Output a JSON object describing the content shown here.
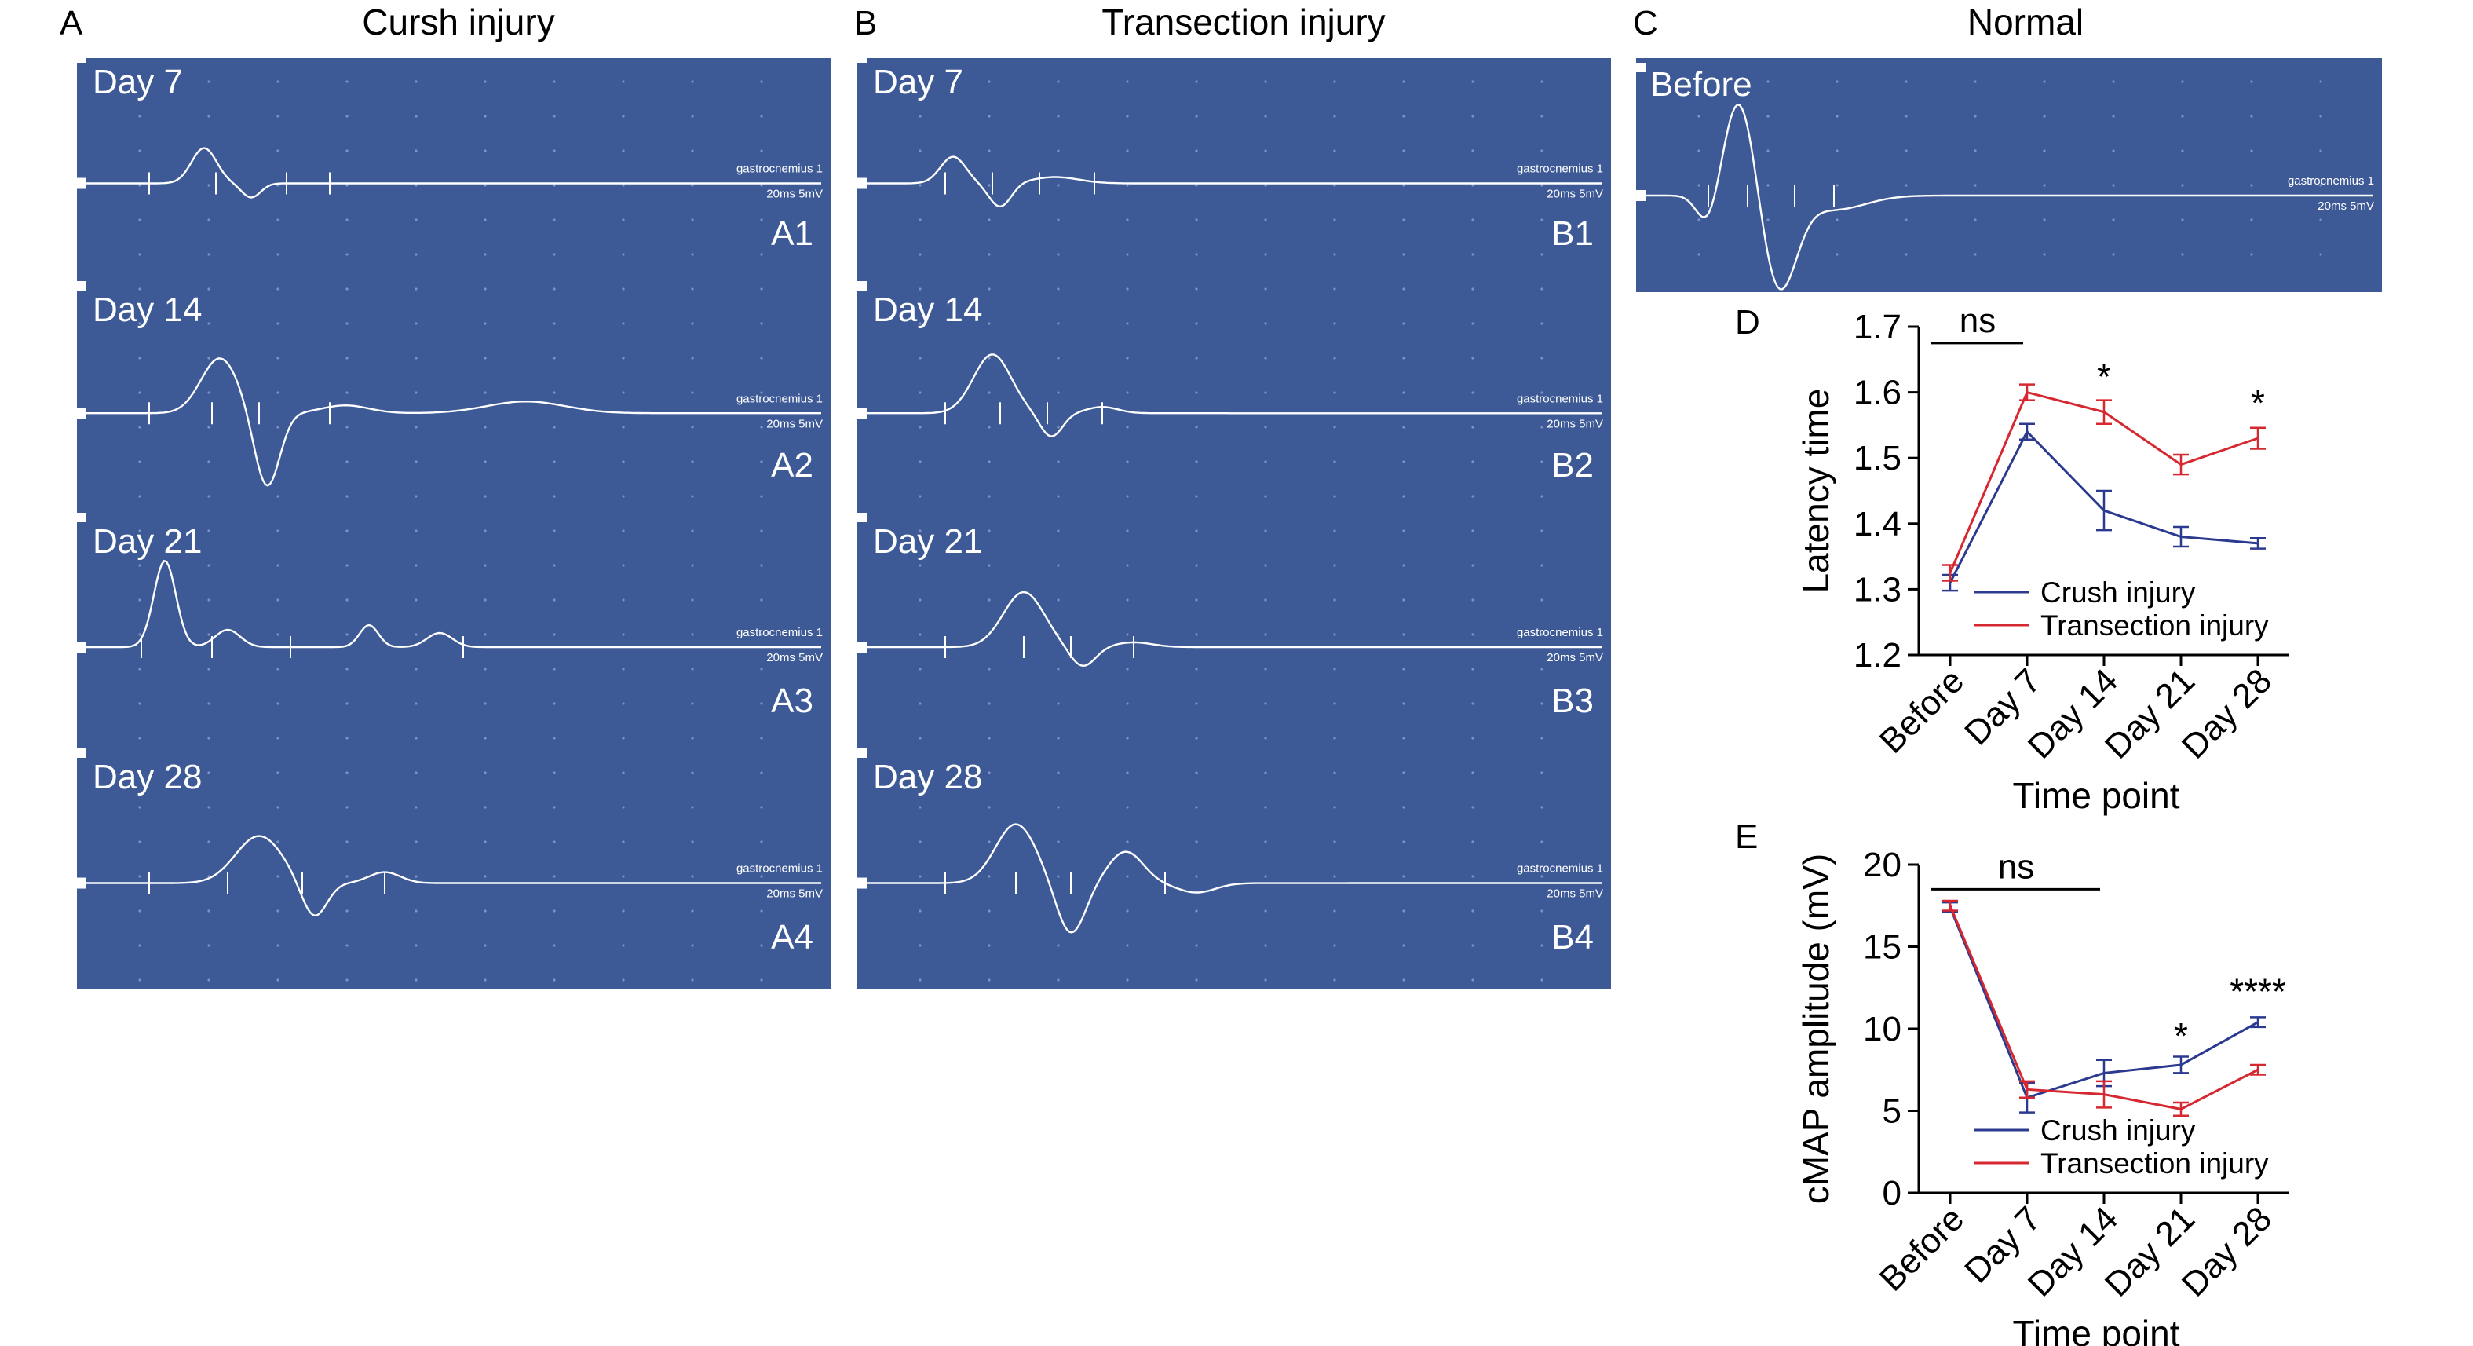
{
  "panel_letters": {
    "A": "A",
    "B": "B",
    "C": "C",
    "D": "D",
    "E": "E"
  },
  "colors": {
    "emg_bg": "#3d5a96",
    "emg_fg": "#ffffff",
    "crush": "#2b3a8f",
    "transection": "#d62830",
    "axis": "#000000"
  },
  "emg_panels": {
    "A": {
      "title": "Cursh injury",
      "rows": [
        {
          "day": "Day 7",
          "sub": "A1"
        },
        {
          "day": "Day 14",
          "sub": "A2"
        },
        {
          "day": "Day 21",
          "sub": "A3"
        },
        {
          "day": "Day 28",
          "sub": "A4"
        }
      ]
    },
    "B": {
      "title": "Transection injury",
      "rows": [
        {
          "day": "Day 7",
          "sub": "B1"
        },
        {
          "day": "Day 14",
          "sub": "B2"
        },
        {
          "day": "Day 21",
          "sub": "B3"
        },
        {
          "day": "Day 28",
          "sub": "B4"
        }
      ]
    },
    "C": {
      "title": "Normal",
      "day": "Before"
    },
    "channel_label": "gastrocnemius 1",
    "scale_label": "20ms 5mV"
  },
  "chart_data": [
    {
      "id": "D",
      "type": "line",
      "ylabel": "Latency time",
      "xlabel": "Time point",
      "categories": [
        "Before",
        "Day 7",
        "Day 14",
        "Day 21",
        "Day 28"
      ],
      "ylim": [
        1.2,
        1.7
      ],
      "yticks": [
        "1.2",
        "1.3",
        "1.4",
        "1.5",
        "1.6",
        "1.7"
      ],
      "series": [
        {
          "name": "Crush injury",
          "color": "#2b3a8f",
          "values": [
            1.31,
            1.54,
            1.42,
            1.38,
            1.37
          ],
          "errors": [
            0.012,
            0.012,
            0.03,
            0.015,
            0.008
          ]
        },
        {
          "name": "Transection injury",
          "color": "#d62830",
          "values": [
            1.325,
            1.6,
            1.57,
            1.49,
            1.53
          ],
          "errors": [
            0.012,
            0.012,
            0.018,
            0.015,
            0.016
          ]
        }
      ],
      "annotations": [
        {
          "text": "ns",
          "kind": "bracket",
          "from": 0,
          "to": 1,
          "y": 1.675
        },
        {
          "text": "*",
          "kind": "star",
          "at": 2,
          "y": 1.605
        },
        {
          "text": "*",
          "kind": "star",
          "at": 4,
          "y": 1.565
        }
      ],
      "legend": "bottom-right"
    },
    {
      "id": "E",
      "type": "line",
      "ylabel": "cMAP amplitude (mV)",
      "xlabel": "Time point",
      "categories": [
        "Before",
        "Day 7",
        "Day 14",
        "Day 21",
        "Day 28"
      ],
      "ylim": [
        0,
        20
      ],
      "yticks": [
        "0",
        "5",
        "10",
        "15",
        "20"
      ],
      "series": [
        {
          "name": "Crush injury",
          "color": "#2b3a8f",
          "values": [
            17.4,
            5.8,
            7.3,
            7.8,
            10.4
          ],
          "errors": [
            0.3,
            0.9,
            0.8,
            0.5,
            0.3
          ]
        },
        {
          "name": "Transection injury",
          "color": "#d62830",
          "values": [
            17.5,
            6.3,
            6.0,
            5.1,
            7.5
          ],
          "errors": [
            0.3,
            0.5,
            0.8,
            0.4,
            0.3
          ]
        }
      ],
      "annotations": [
        {
          "text": "ns",
          "kind": "bracket",
          "from": 0,
          "to": 2,
          "y": 18.5
        },
        {
          "text": "*",
          "kind": "star",
          "at": 3,
          "y": 8.8
        },
        {
          "text": "****",
          "kind": "star",
          "at": 4,
          "y": 11.5
        }
      ],
      "legend": "bottom-right"
    }
  ]
}
